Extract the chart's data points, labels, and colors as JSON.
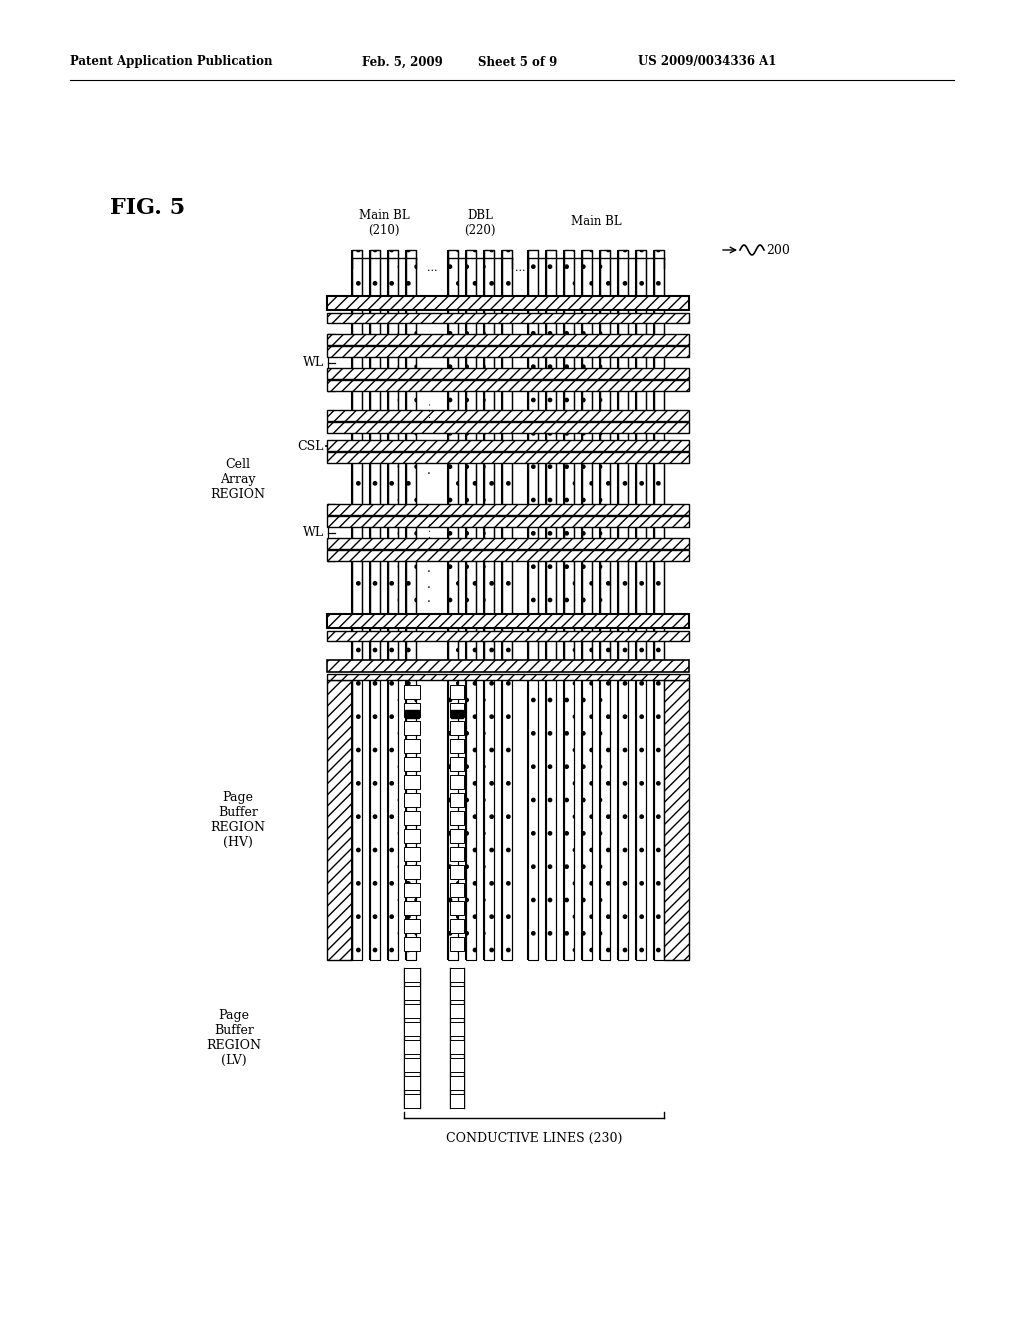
{
  "bg_color": "#ffffff",
  "header_text": "Patent Application Publication",
  "header_date": "Feb. 5, 2009",
  "header_sheet": "Sheet 5 of 9",
  "header_number": "US 2009/0034336 A1",
  "fig_label": "FIG. 5",
  "ref_num": "200",
  "label_main_bl_210": "Main BL\n(210)",
  "label_dbl_220": "DBL\n(220)",
  "label_main_bl": "Main BL",
  "label_wl": "WL",
  "label_csl": "CSL",
  "label_cell_array": "Cell\nArray\nREGION",
  "label_pb_hv": "Page\nBuffer\nREGION\n(HV)",
  "label_pb_lv": "Page\nBuffer\nREGION\n(LV)",
  "label_cond_lines": "CONDUCTIVE LINES (230)"
}
